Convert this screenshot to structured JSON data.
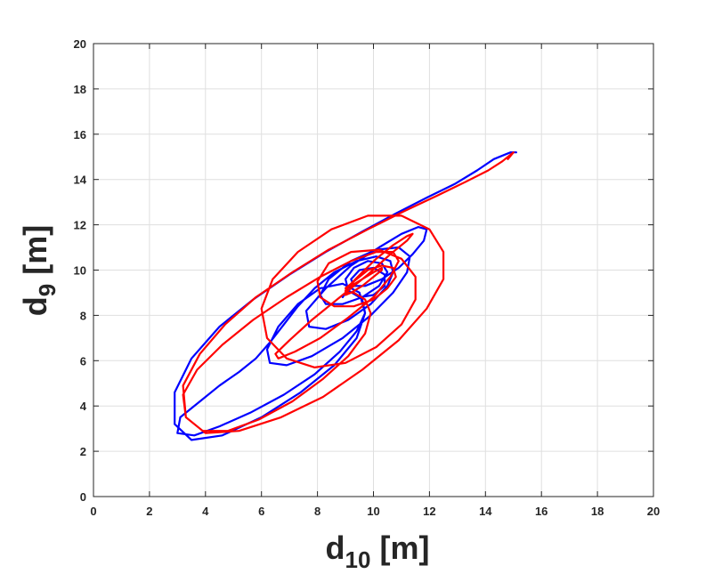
{
  "chart_data": {
    "type": "line",
    "title": "",
    "xlabel": {
      "main": "d",
      "sub": "10",
      "unit": " [m]"
    },
    "ylabel": {
      "main": "d",
      "sub": "9",
      "unit": " [m]"
    },
    "xlim": [
      0,
      20
    ],
    "ylim": [
      0,
      20
    ],
    "xticks": [
      "0",
      "2",
      "4",
      "6",
      "8",
      "10",
      "12",
      "14",
      "16",
      "18",
      "20"
    ],
    "yticks": [
      "0",
      "2",
      "4",
      "6",
      "8",
      "10",
      "12",
      "14",
      "16",
      "18",
      "20"
    ],
    "grid": true,
    "legend": "none",
    "series": [
      {
        "color": "#0000ff",
        "x": [
          15.1,
          14.9,
          14.7,
          14.3,
          13.7,
          12.9,
          11.9,
          10.8,
          9.6,
          8.3,
          7.0,
          5.7,
          4.5,
          3.5,
          2.9,
          2.9,
          3.5,
          4.6,
          6.0,
          7.4,
          8.6,
          9.4,
          9.7,
          9.5,
          8.9,
          8.1,
          7.3,
          6.6,
          6.2,
          6.3,
          6.9,
          7.8,
          8.9,
          9.9,
          10.7,
          11.2,
          11.3,
          10.9,
          10.1,
          9.2,
          8.4,
          8.1,
          8.3,
          8.9,
          9.6,
          10.2,
          10.5,
          10.3,
          9.8,
          9.3,
          9.0,
          9.1,
          9.5,
          10.0,
          10.4,
          10.4,
          10.0,
          9.5,
          9.2,
          9.3,
          9.7,
          10.3,
          10.9,
          11.4,
          11.8,
          11.9,
          11.6,
          11.0,
          10.2,
          9.2,
          8.3,
          7.6,
          7.7,
          8.3,
          9.1,
          9.9,
          10.5,
          10.7,
          10.6,
          10.1,
          9.4,
          8.6,
          7.9,
          7.3,
          6.8,
          6.3,
          5.8,
          5.2,
          4.5,
          3.8,
          3.1,
          3.0,
          3.6,
          4.5,
          5.6,
          6.8,
          7.9,
          8.8,
          9.4,
          9.7,
          9.6,
          9.3,
          9.0,
          8.9
        ],
        "y": [
          15.2,
          15.2,
          15.1,
          14.9,
          14.4,
          13.8,
          13.2,
          12.5,
          11.7,
          10.8,
          9.8,
          8.7,
          7.5,
          6.1,
          4.6,
          3.2,
          2.5,
          2.7,
          3.5,
          4.6,
          5.8,
          7.0,
          8.1,
          9.0,
          9.4,
          9.2,
          8.5,
          7.5,
          6.5,
          5.9,
          5.8,
          6.2,
          7.0,
          8.0,
          9.0,
          9.9,
          10.6,
          11.0,
          10.9,
          10.4,
          9.6,
          8.9,
          8.5,
          8.5,
          8.8,
          9.3,
          9.9,
          10.3,
          10.4,
          10.1,
          9.6,
          9.1,
          8.8,
          8.9,
          9.3,
          9.8,
          10.1,
          10.0,
          9.6,
          9.3,
          9.3,
          9.6,
          10.1,
          10.7,
          11.3,
          11.8,
          11.9,
          11.6,
          11.0,
          10.2,
          9.2,
          8.2,
          7.5,
          7.4,
          7.8,
          8.5,
          9.3,
          9.9,
          10.4,
          10.6,
          10.4,
          9.9,
          9.2,
          8.4,
          7.6,
          6.8,
          6.1,
          5.5,
          4.9,
          4.2,
          3.5,
          2.8,
          2.7,
          3.1,
          3.7,
          4.5,
          5.4,
          6.4,
          7.3,
          8.1,
          8.7,
          9.0,
          9.0,
          8.8
        ]
      },
      {
        "color": "#ff0000",
        "x": [
          14.8,
          15.0,
          14.9,
          14.6,
          14.1,
          13.3,
          12.3,
          11.1,
          9.8,
          8.4,
          7.1,
          5.8,
          4.7,
          3.8,
          3.2,
          3.3,
          4.0,
          5.2,
          6.7,
          8.2,
          9.6,
          10.9,
          11.9,
          12.5,
          12.5,
          12.0,
          11.0,
          9.8,
          8.5,
          7.3,
          6.4,
          6.0,
          6.2,
          6.9,
          7.9,
          9.0,
          10.1,
          11.0,
          11.5,
          11.5,
          11.0,
          10.2,
          9.2,
          8.4,
          8.0,
          8.1,
          8.6,
          9.3,
          10.0,
          10.5,
          10.8,
          10.7,
          10.3,
          9.8,
          9.3,
          9.0,
          9.0,
          9.2,
          9.6,
          10.0,
          10.3,
          10.3,
          10.0,
          9.6,
          9.2,
          9.0,
          9.2,
          9.6,
          10.1,
          10.7,
          11.2,
          11.4,
          11.2,
          10.6,
          9.8,
          8.8,
          7.8,
          7.0,
          6.5,
          6.6,
          7.2,
          8.1,
          9.1,
          10.0,
          10.6,
          10.9,
          10.7,
          10.1,
          9.2,
          8.1,
          6.9,
          5.7,
          4.6,
          3.7,
          3.2,
          3.3,
          3.9,
          4.8,
          5.9,
          7.1,
          8.2,
          9.1,
          9.7,
          9.9,
          9.7,
          9.3,
          9.0
        ],
        "y": [
          14.9,
          15.2,
          15.1,
          14.8,
          14.4,
          13.9,
          13.3,
          12.6,
          11.8,
          10.9,
          9.9,
          8.8,
          7.6,
          6.3,
          4.9,
          3.5,
          2.8,
          2.9,
          3.5,
          4.4,
          5.6,
          6.9,
          8.3,
          9.6,
          10.8,
          11.8,
          12.4,
          12.4,
          11.8,
          10.8,
          9.6,
          8.3,
          7.0,
          6.1,
          5.7,
          5.9,
          6.6,
          7.6,
          8.7,
          9.7,
          10.5,
          10.9,
          10.8,
          10.3,
          9.5,
          8.8,
          8.4,
          8.4,
          8.7,
          9.2,
          9.7,
          10.1,
          10.2,
          10.0,
          9.5,
          9.1,
          8.9,
          9.0,
          9.3,
          9.7,
          10.0,
          10.1,
          9.9,
          9.6,
          9.3,
          9.2,
          9.4,
          9.9,
          10.5,
          11.1,
          11.5,
          11.6,
          11.3,
          10.7,
          9.8,
          8.8,
          7.8,
          6.9,
          6.3,
          6.1,
          6.4,
          7.0,
          7.9,
          8.8,
          9.7,
          10.4,
          10.8,
          10.8,
          10.4,
          9.7,
          8.8,
          7.8,
          6.7,
          5.6,
          4.5,
          3.5,
          2.9,
          2.9,
          3.4,
          4.2,
          5.2,
          6.2,
          7.2,
          8.1,
          8.7,
          9.0,
          9.0
        ]
      }
    ]
  }
}
